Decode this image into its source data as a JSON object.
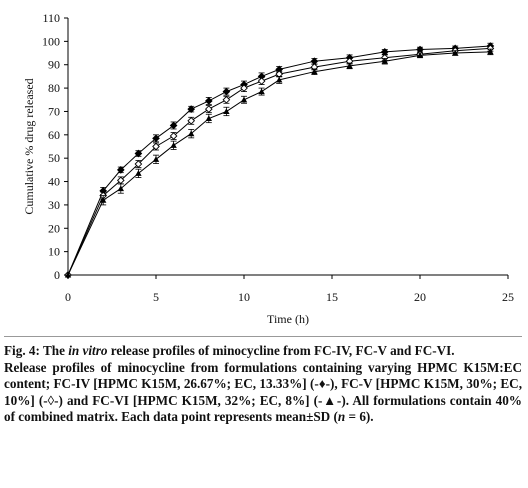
{
  "chart_data": {
    "type": "line",
    "xlabel": "Time (h)",
    "ylabel": "Cumulative % drug released",
    "xlim": [
      0,
      25
    ],
    "ylim": [
      0,
      110
    ],
    "xticks": [
      0,
      5,
      10,
      15,
      20,
      25
    ],
    "yticks": [
      0,
      10,
      20,
      30,
      40,
      50,
      60,
      70,
      80,
      90,
      100,
      110
    ],
    "grid": false,
    "legend": "none",
    "x": [
      0,
      2,
      3,
      4,
      5,
      6,
      7,
      8,
      9,
      10,
      11,
      12,
      14,
      16,
      18,
      20,
      22,
      24
    ],
    "series": [
      {
        "name": "FC-IV",
        "marker": "diamond-filled",
        "color": "#000000",
        "values": [
          0,
          36,
          45,
          52,
          58.5,
          64,
          71,
          74.5,
          78.5,
          81.5,
          85,
          88,
          91.5,
          93,
          95.5,
          96.5,
          97,
          98
        ],
        "errors": [
          0,
          1.5,
          1.2,
          1.2,
          1.5,
          1.5,
          1.2,
          1.5,
          1.5,
          1.5,
          1.5,
          1.2,
          1.2,
          1.2,
          1,
          1,
          1,
          1.2
        ]
      },
      {
        "name": "FC-V",
        "marker": "diamond-open",
        "color": "#000000",
        "values": [
          0,
          34,
          40.5,
          47.5,
          55,
          59.5,
          66,
          71,
          75,
          80,
          83,
          86,
          89,
          91.5,
          93,
          94.5,
          96,
          97
        ],
        "errors": [
          0,
          1.5,
          1.5,
          1.5,
          1.5,
          1.5,
          1.5,
          1.5,
          1.5,
          1.5,
          1.5,
          1.2,
          1.2,
          1.2,
          1.2,
          1,
          1,
          1.2
        ]
      },
      {
        "name": "FC-VI",
        "marker": "triangle-filled",
        "color": "#000000",
        "values": [
          0,
          32,
          37,
          43.5,
          49.5,
          55.5,
          60.5,
          67,
          70,
          75,
          78.5,
          83.5,
          87,
          89.5,
          91.5,
          94,
          95,
          95.5
        ],
        "errors": [
          0,
          2,
          2,
          1.8,
          1.8,
          1.8,
          1.8,
          1.8,
          1.8,
          1.5,
          1.5,
          1.5,
          1.2,
          1.2,
          1.2,
          1,
          1,
          1.2
        ]
      }
    ]
  },
  "caption": {
    "fig_label": "Fig. 4:",
    "title_pre": " The ",
    "title_em": "in vitro",
    "title_post": " release profiles of minocycline from FC-IV, FC-V and FC-VI.",
    "body_pre": "Release profiles of minocycline from formulations containing varying HPMC K15M:EC content; FC-IV [HPMC K15M, 26.67%; EC, 13.33%] (-♦-), FC-V [HPMC K15M, 30%; EC, 10%] (-◊-) and FC-VI [HPMC K15M, 32%; EC, 8%] (-▲-). All formulations contain 40% of combined matrix. Each data point represents mean±SD (",
    "body_em": "n",
    "body_post": " = 6)."
  }
}
